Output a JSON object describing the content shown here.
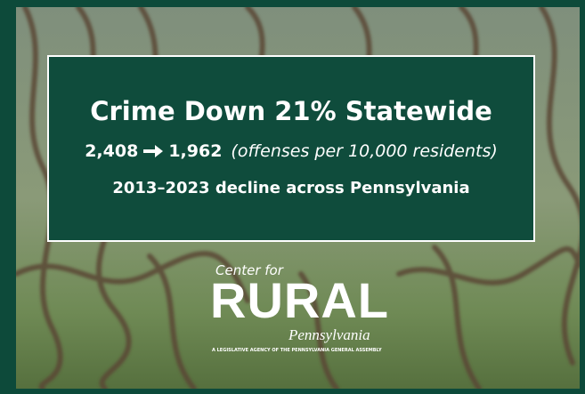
{
  "headline": "Crime Down 21% Statewide",
  "rate_change": {
    "from": "2,408",
    "to": "1,962",
    "unit": "(offenses per 10,000 residents)"
  },
  "subheadline": "2013–2023 decline across Pennsylvania",
  "logo": {
    "top": "Center for",
    "main": "RURAL",
    "bottom": "Pennsylvania",
    "tagline": "A LEGISLATIVE AGENCY OF THE PENNSYLVANIA GENERAL ASSEMBLY"
  }
}
